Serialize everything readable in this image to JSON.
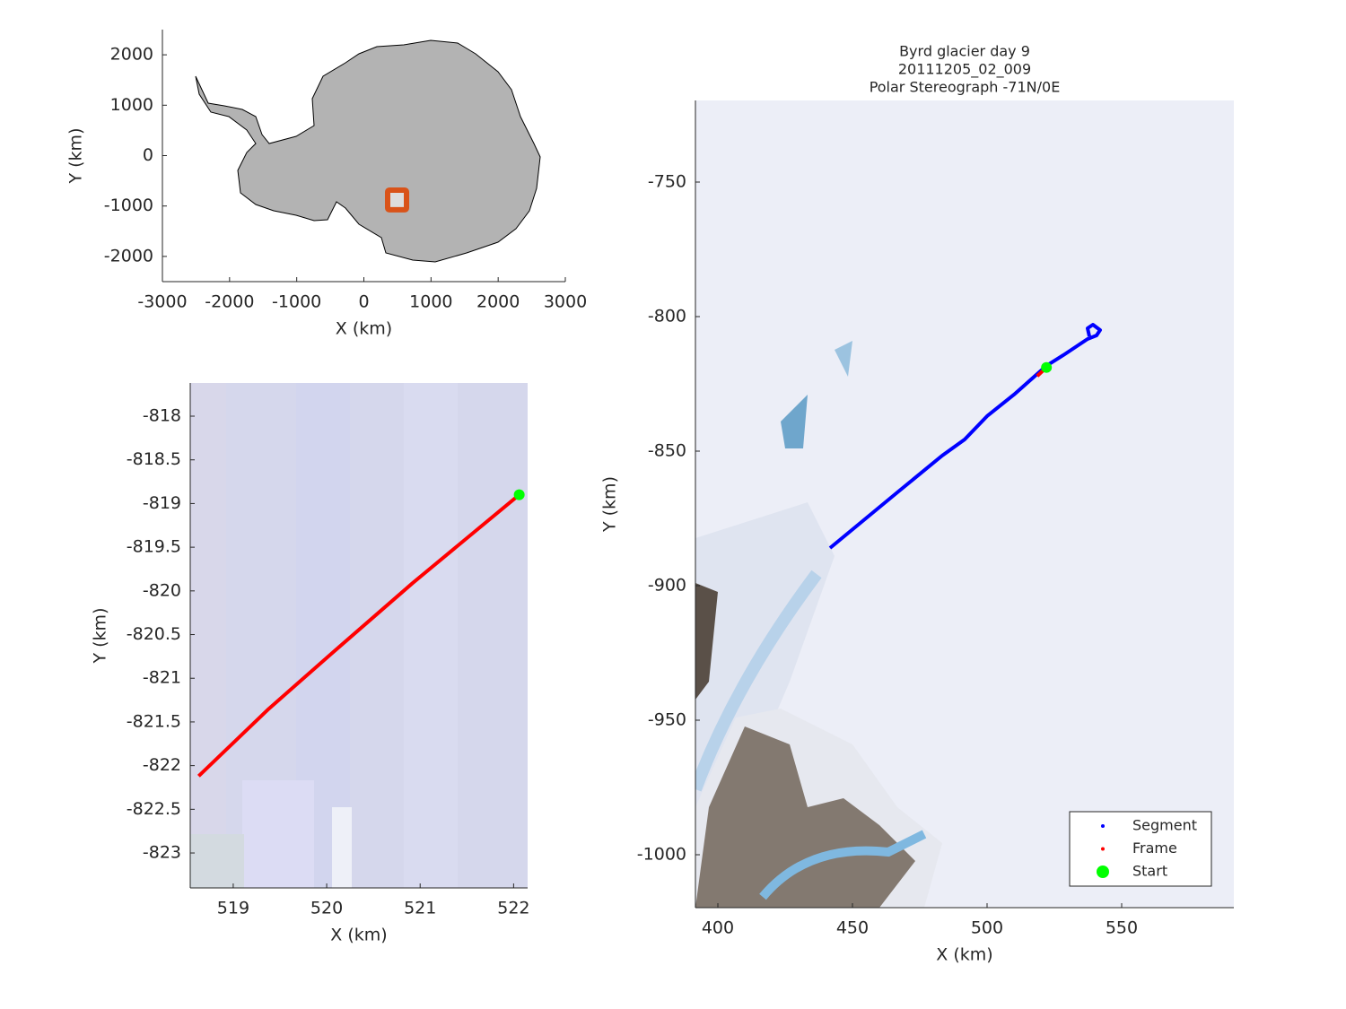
{
  "chart_data": [
    {
      "type": "map",
      "xlabel": "X (km)",
      "ylabel": "Y (km)",
      "xlim": [
        -3000,
        3000
      ],
      "ylim": [
        -2500,
        2500
      ],
      "xticks": [
        -3000,
        -2000,
        -1000,
        0,
        1000,
        2000,
        3000
      ],
      "yticks": [
        -2000,
        -1000,
        0,
        1000,
        2000
      ],
      "land_color": "#b3b3b3",
      "highlight": {
        "x": [
          354,
          635
        ],
        "y": [
          -1075,
          -684
        ],
        "color": "#d95319"
      }
    },
    {
      "type": "line",
      "xlabel": "X (km)",
      "ylabel": "Y (km)",
      "xlim": [
        518.54,
        522.15
      ],
      "ylim": [
        -823.4,
        -817.62
      ],
      "xticks": [
        519,
        520,
        521,
        522
      ],
      "yticks": [
        -823,
        -822.5,
        -822,
        -821.5,
        -821,
        -820.5,
        -820,
        -819.5,
        -819,
        -818.5,
        -818
      ],
      "series": [
        {
          "color": "#ff0000",
          "x": [
            518.63,
            519.38,
            520.06,
            520.92,
            522.06
          ],
          "values": [
            -822.12,
            -821.35,
            -820.71,
            -819.91,
            -818.9
          ]
        },
        {
          "color": "#00ff00",
          "marker": "o",
          "x": [
            522.06
          ],
          "values": [
            -818.9
          ]
        }
      ]
    },
    {
      "type": "line",
      "title": [
        "Byrd glacier day 9",
        "20111205_02_009",
        "Polar Stereograph -71N/0E"
      ],
      "xlabel": "X (km)",
      "ylabel": "Y (km)",
      "xlim": [
        391.67,
        591.67
      ],
      "ylim": [
        -1019.67,
        -719.67
      ],
      "xticks": [
        400,
        450,
        500,
        550
      ],
      "yticks": [
        -1000,
        -950,
        -900,
        -850,
        -800,
        -750
      ],
      "legend": "southeast",
      "series": [
        {
          "name": "Segment",
          "color": "#0000ff",
          "x": [
            441.67,
            466.67,
            483.33,
            491.67,
            500,
            510,
            522,
            528.33,
            533.33,
            537.33,
            540.67,
            542,
            539.33,
            537.33,
            538
          ],
          "values": [
            -886,
            -865.33,
            -851.67,
            -845.67,
            -837,
            -829,
            -818.33,
            -814.33,
            -811,
            -808.33,
            -807,
            -805,
            -803,
            -804.33,
            -807.33
          ]
        },
        {
          "name": "Frame",
          "color": "#ff0000",
          "x": [
            518.63,
            522.06
          ],
          "values": [
            -822.12,
            -818.9
          ]
        },
        {
          "name": "Start",
          "color": "#00ff00",
          "marker": "o",
          "x": [
            522.06
          ],
          "values": [
            -818.9
          ]
        }
      ]
    }
  ]
}
